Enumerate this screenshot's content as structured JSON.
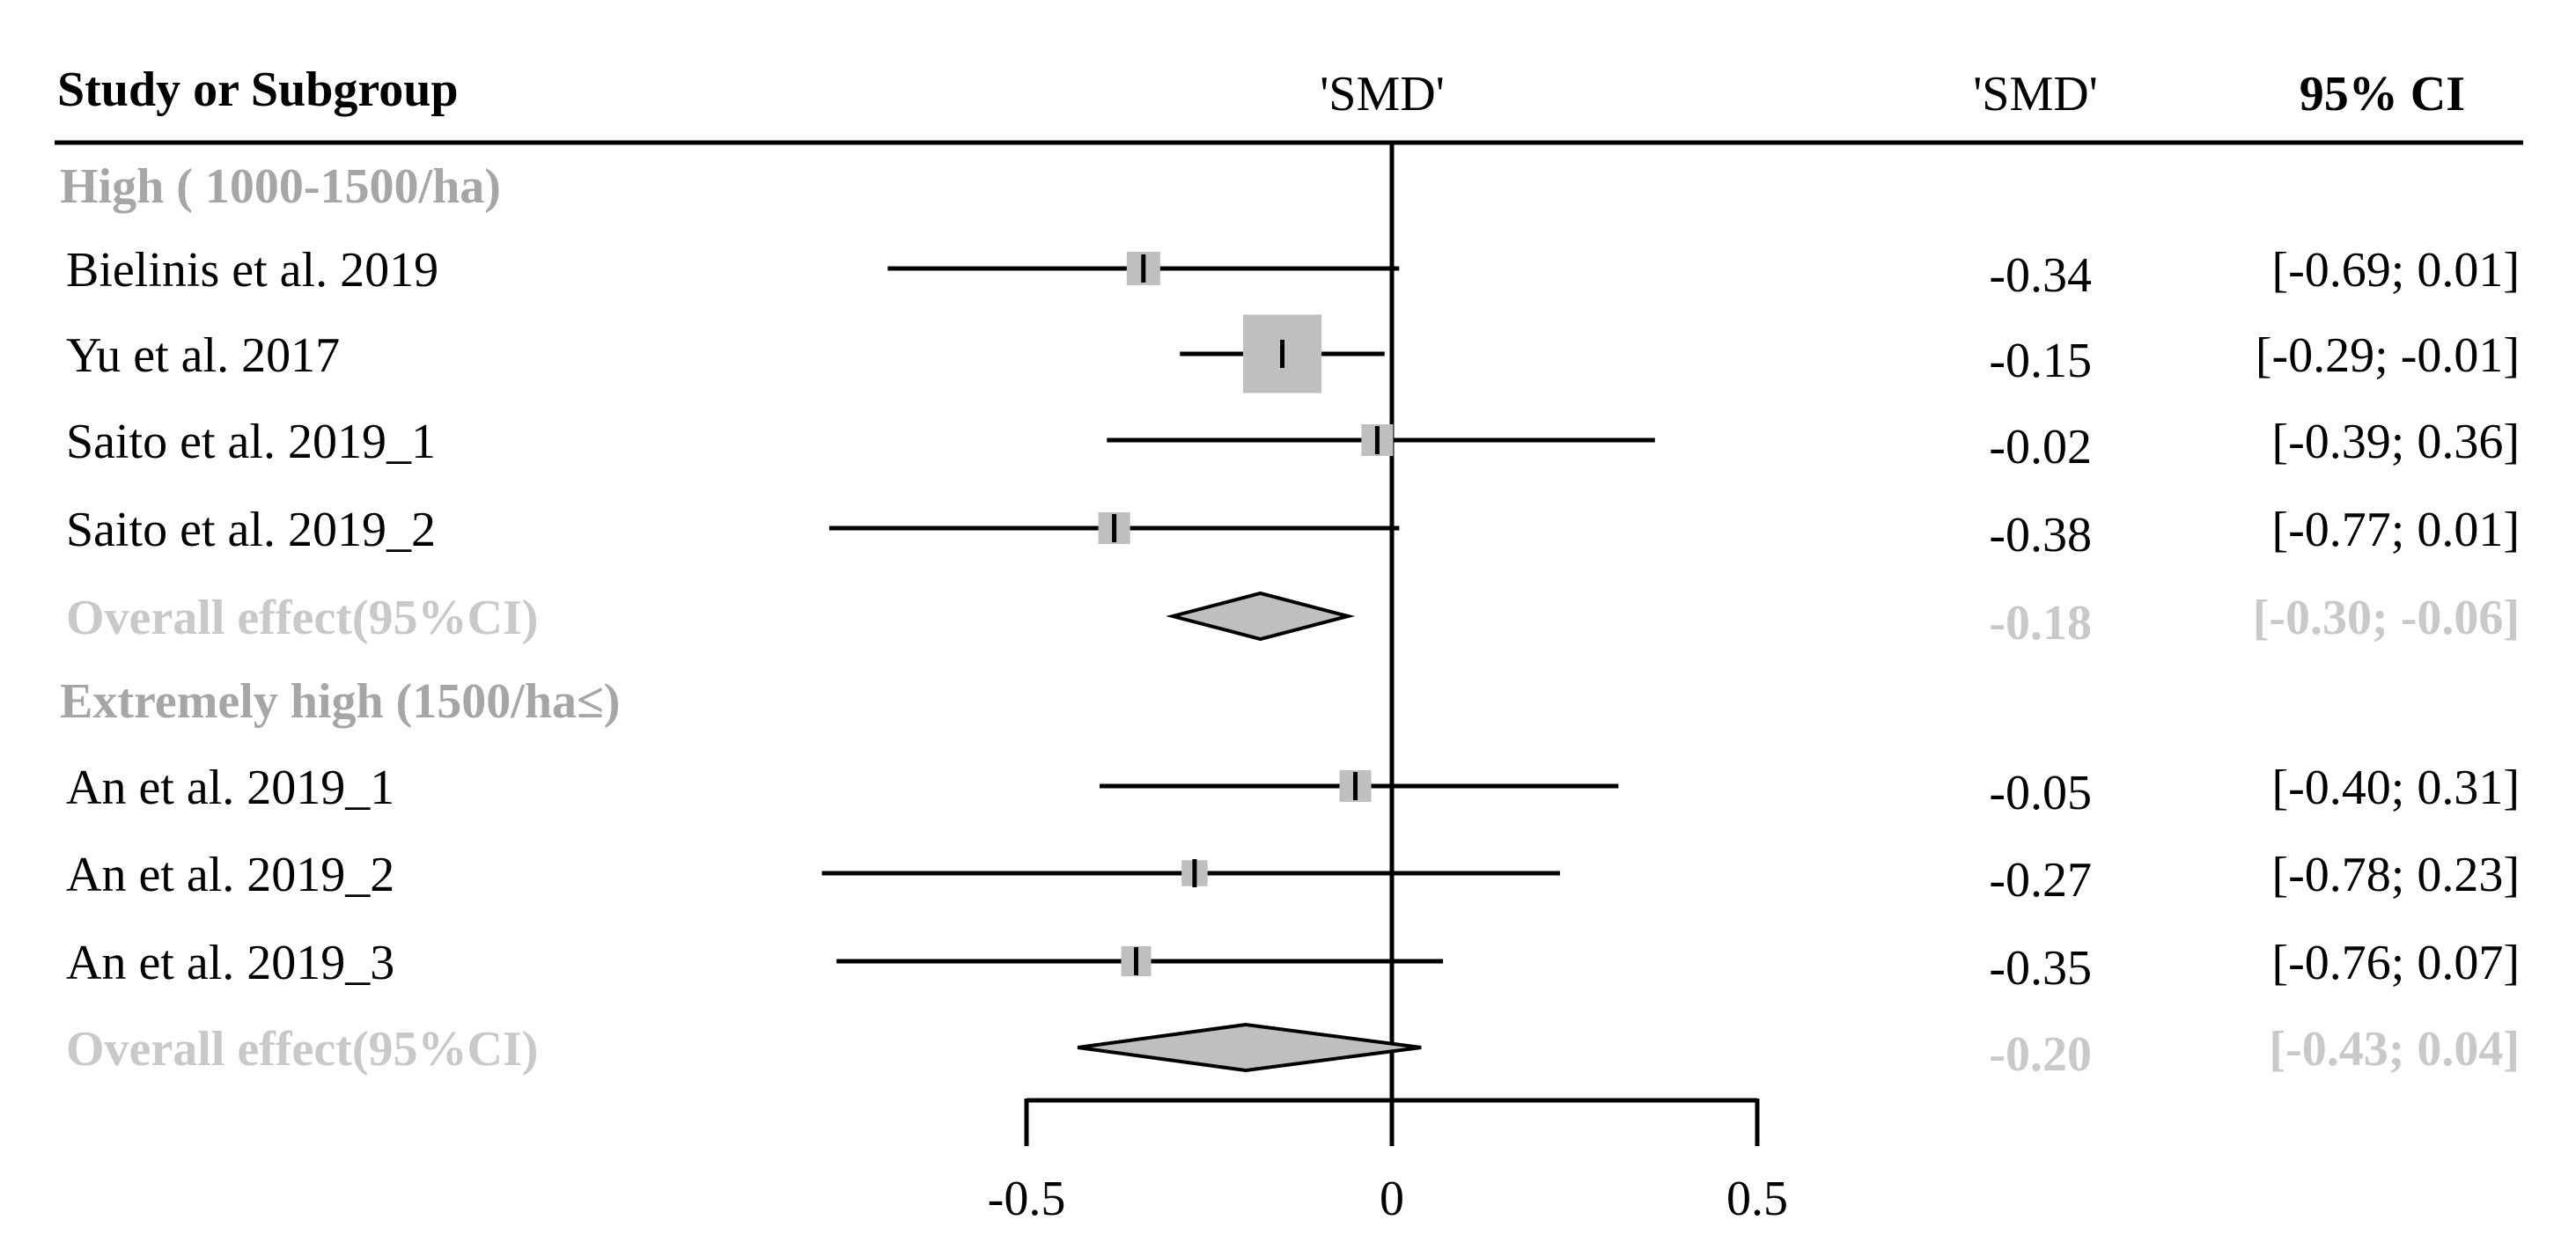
{
  "chart_data": {
    "type": "forest",
    "headers": {
      "study": "Study or Subgroup",
      "plot": "'SMD'",
      "estimate": "'SMD'",
      "ci": "95% CI"
    },
    "x_axis": {
      "range": [
        -0.5,
        0.5
      ],
      "ticks": [
        -0.5,
        0,
        0.5
      ],
      "tick_labels": [
        "-0.5",
        "0",
        "0.5"
      ],
      "reference_line": 0
    },
    "rows": [
      {
        "kind": "subgroup",
        "label": "High ( 1000-1500/ha)"
      },
      {
        "kind": "study",
        "label": "Bielinis et al. 2019",
        "smd": -0.34,
        "lower": -0.69,
        "upper": 0.01,
        "smd_text": "-0.34",
        "ci_text": "[-0.69;  0.01]",
        "weight": 1.0
      },
      {
        "kind": "study",
        "label": "Yu et al. 2017",
        "smd": -0.15,
        "lower": -0.29,
        "upper": -0.01,
        "smd_text": "-0.15",
        "ci_text": "[-0.29; -0.01]",
        "weight": 5.5
      },
      {
        "kind": "study",
        "label": "Saito et al. 2019_1",
        "smd": -0.02,
        "lower": -0.39,
        "upper": 0.36,
        "smd_text": "-0.02",
        "ci_text": "[-0.39;  0.36]",
        "weight": 0.9
      },
      {
        "kind": "study",
        "label": "Saito et al. 2019_2",
        "smd": -0.38,
        "lower": -0.77,
        "upper": 0.01,
        "smd_text": "-0.38",
        "ci_text": "[-0.77;  0.01]",
        "weight": 0.9
      },
      {
        "kind": "overall",
        "label": "Overall effect(95%CI)",
        "smd": -0.18,
        "lower": -0.3,
        "upper": -0.06,
        "smd_text": "-0.18",
        "ci_text": "[-0.30; -0.06]"
      },
      {
        "kind": "subgroup",
        "label": "Extremely high (1500/ha≤)"
      },
      {
        "kind": "study",
        "label": "An et al. 2019_1",
        "smd": -0.05,
        "lower": -0.4,
        "upper": 0.31,
        "smd_text": "-0.05",
        "ci_text": "[-0.40;  0.31]",
        "weight": 0.9
      },
      {
        "kind": "study",
        "label": "An et al. 2019_2",
        "smd": -0.27,
        "lower": -0.78,
        "upper": 0.23,
        "smd_text": "-0.27",
        "ci_text": "[-0.78;  0.23]",
        "weight": 0.6
      },
      {
        "kind": "study",
        "label": "An et al. 2019_3",
        "smd": -0.35,
        "lower": -0.76,
        "upper": 0.07,
        "smd_text": "-0.35",
        "ci_text": "[-0.76;  0.07]",
        "weight": 0.8
      },
      {
        "kind": "overall",
        "label": "Overall effect(95%CI)",
        "smd": -0.2,
        "lower": -0.43,
        "upper": 0.04,
        "smd_text": "-0.20",
        "ci_text": "[-0.43;  0.04]"
      }
    ],
    "colors": {
      "text": "#000000",
      "subgroup_label": "#a6a6a6",
      "overall_text": "#c9c9c9",
      "box_fill": "#bfbfbf",
      "diamond_fill": "#bfbfbf",
      "line": "#000000"
    }
  }
}
